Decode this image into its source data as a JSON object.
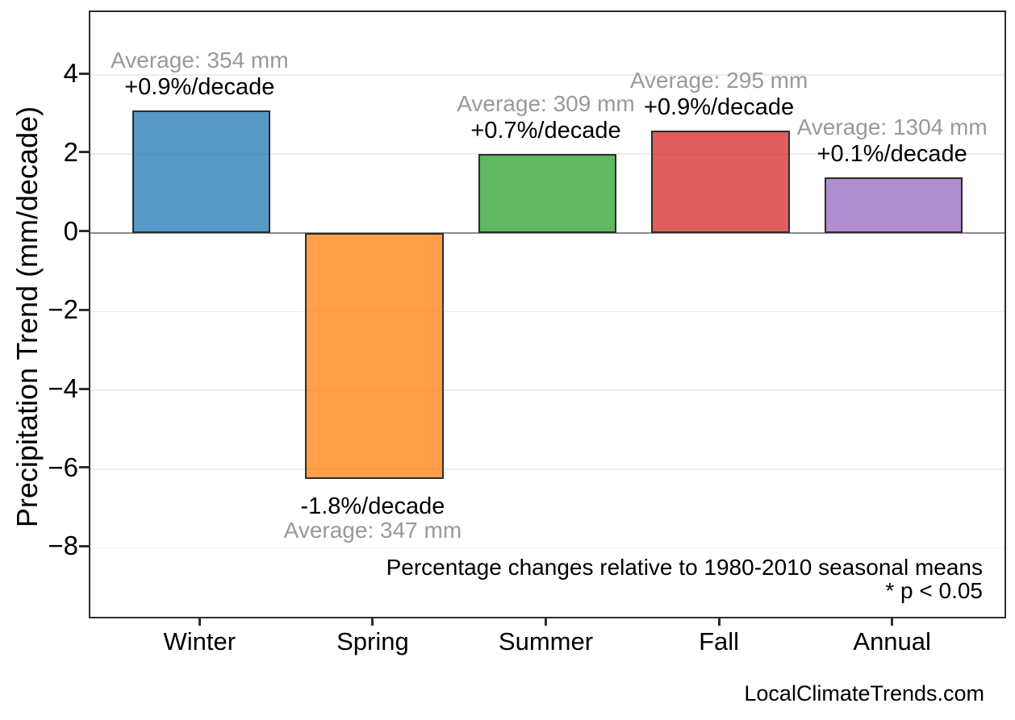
{
  "figure": {
    "footer": "LocalClimateTrends.com"
  },
  "chart_data": {
    "type": "bar",
    "title": "",
    "xlabel": "",
    "ylabel": "Precipitation Trend (mm/decade)",
    "categories": [
      "Winter",
      "Spring",
      "Summer",
      "Fall",
      "Annual"
    ],
    "values": [
      3.1,
      -6.25,
      2.0,
      2.6,
      1.4
    ],
    "bars": [
      {
        "category": "Winter",
        "value": 3.1,
        "color": "#1F77B4",
        "average_label": "Average: 354 mm",
        "trend_label": "+0.9%/decade"
      },
      {
        "category": "Spring",
        "value": -6.25,
        "color": "#FF7F0E",
        "average_label": "Average: 347 mm",
        "trend_label": "-1.8%/decade"
      },
      {
        "category": "Summer",
        "value": 2.0,
        "color": "#2CA02C",
        "average_label": "Average: 309 mm",
        "trend_label": "+0.7%/decade"
      },
      {
        "category": "Fall",
        "value": 2.6,
        "color": "#D62728",
        "average_label": "Average: 295 mm",
        "trend_label": "+0.9%/decade"
      },
      {
        "category": "Annual",
        "value": 1.4,
        "color": "#9467BD",
        "average_label": "Average: 1304 mm",
        "trend_label": "+0.1%/decade"
      }
    ],
    "bar_alpha": 0.75,
    "bar_edge_color": "#2B2B2B",
    "yticks": [
      4,
      2,
      0,
      -2,
      -4,
      -6,
      -8
    ],
    "ylim": [
      -9.75,
      5.6
    ],
    "xlim": [
      -0.64,
      4.64
    ],
    "bar_width_units": 0.8,
    "grid": true,
    "legend": "none",
    "annotations": {
      "note_line1": "Percentage changes relative to 1980-2010 seasonal means",
      "note_line2": "* p < 0.05"
    },
    "colors": {
      "grid": "#ECECEC",
      "zero_line": "#8C8C8C",
      "average_text": "#999999",
      "trend_text": "#000000",
      "axis_text": "#000000",
      "spine": "#2E2E2E"
    }
  }
}
